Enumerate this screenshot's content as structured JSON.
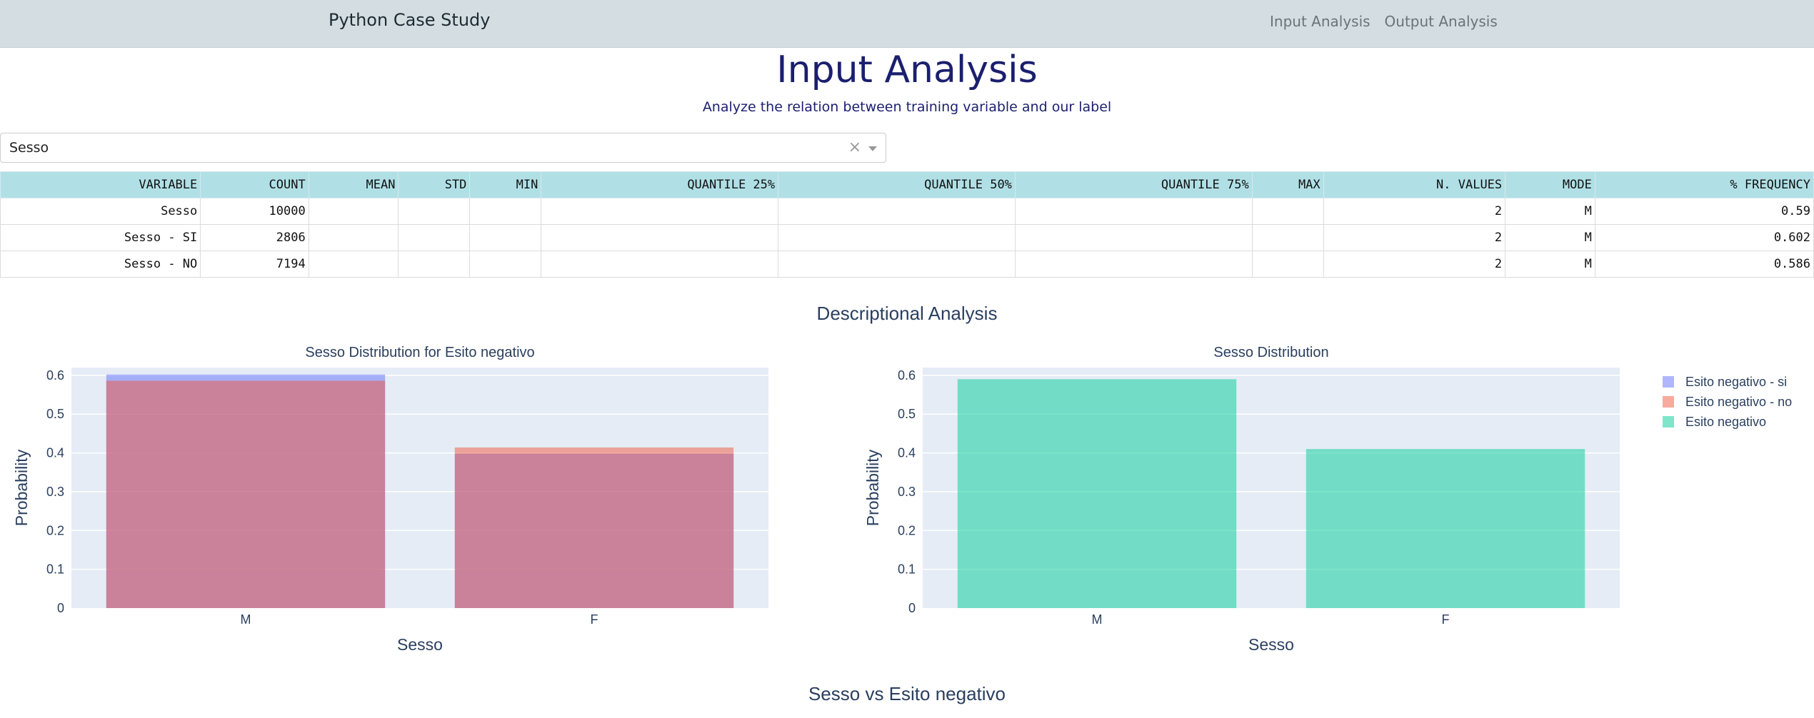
{
  "navbar": {
    "brand": "Python Case Study",
    "links": [
      "Input Analysis",
      "Output Analysis"
    ]
  },
  "header": {
    "title": "Input Analysis",
    "subtitle": "Analyze the relation between training variable and our label"
  },
  "dropdown": {
    "value": "Sesso",
    "clear_symbol": "×"
  },
  "table": {
    "columns": [
      "VARIABLE",
      "COUNT",
      "MEAN",
      "STD",
      "MIN",
      "QUANTILE 25%",
      "QUANTILE 50%",
      "QUANTILE 75%",
      "MAX",
      "N. VALUES",
      "MODE",
      "% FREQUENCY"
    ],
    "rows": [
      [
        "Sesso",
        "10000",
        "",
        "",
        "",
        "",
        "",
        "",
        "",
        "2",
        "M",
        "0.59"
      ],
      [
        "Sesso - SI",
        "2806",
        "",
        "",
        "",
        "",
        "",
        "",
        "",
        "2",
        "M",
        "0.602"
      ],
      [
        "Sesso - NO",
        "7194",
        "",
        "",
        "",
        "",
        "",
        "",
        "",
        "2",
        "M",
        "0.586"
      ]
    ]
  },
  "sections": {
    "descriptional": "Descriptional Analysis",
    "versus": "Sesso vs Esito negativo"
  },
  "legend": [
    {
      "label": "Esito negativo - si",
      "color": "#636efa"
    },
    {
      "label": "Esito negativo - no",
      "color": "#ef553b"
    },
    {
      "label": "Esito negativo",
      "color": "#00cc96"
    }
  ],
  "chart_data": [
    {
      "type": "bar",
      "title": "Sesso Distribution for Esito negativo",
      "xlabel": "Sesso",
      "ylabel": "Probability",
      "categories": [
        "M",
        "F"
      ],
      "ylim": [
        0,
        0.62
      ],
      "yticks": [
        "0",
        "0.1",
        "0.2",
        "0.3",
        "0.4",
        "0.5",
        "0.6"
      ],
      "barmode": "overlay",
      "grid": true,
      "series": [
        {
          "name": "Esito negativo - si",
          "values": [
            0.602,
            0.398
          ],
          "color": "#636efa"
        },
        {
          "name": "Esito negativo - no",
          "values": [
            0.586,
            0.414
          ],
          "color": "#ef553b"
        }
      ]
    },
    {
      "type": "bar",
      "title": "Sesso Distribution",
      "xlabel": "Sesso",
      "ylabel": "Probability",
      "categories": [
        "M",
        "F"
      ],
      "ylim": [
        0,
        0.62
      ],
      "yticks": [
        "0",
        "0.1",
        "0.2",
        "0.3",
        "0.4",
        "0.5",
        "0.6"
      ],
      "grid": true,
      "legend_position": "top-right",
      "series": [
        {
          "name": "Esito negativo",
          "values": [
            0.59,
            0.41
          ],
          "color": "#00cc96"
        }
      ]
    }
  ]
}
